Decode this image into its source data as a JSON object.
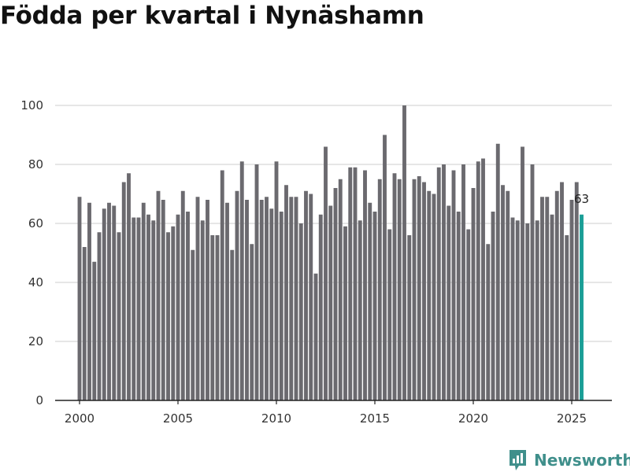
{
  "chart_data": {
    "type": "bar",
    "title": "Födda per kvartal i Nynäshamn",
    "xlabel": "",
    "ylabel": "",
    "ylim": [
      0,
      100
    ],
    "yticks": [
      0,
      20,
      40,
      60,
      80,
      100
    ],
    "xticks": [
      2000,
      2005,
      2010,
      2015,
      2020,
      2025
    ],
    "x_start": 2000.0,
    "period_years": 0.25,
    "values": [
      69,
      52,
      67,
      47,
      57,
      65,
      67,
      66,
      57,
      74,
      77,
      62,
      62,
      67,
      63,
      61,
      71,
      68,
      57,
      59,
      63,
      71,
      64,
      51,
      69,
      61,
      68,
      56,
      56,
      78,
      67,
      51,
      71,
      81,
      68,
      53,
      80,
      68,
      69,
      65,
      81,
      64,
      73,
      69,
      69,
      60,
      71,
      70,
      43,
      63,
      86,
      66,
      72,
      75,
      59,
      79,
      79,
      61,
      78,
      67,
      64,
      75,
      90,
      58,
      77,
      75,
      100,
      56,
      75,
      76,
      74,
      71,
      70,
      79,
      80,
      66,
      78,
      64,
      80,
      58,
      72,
      81,
      82,
      53,
      64,
      87,
      73,
      71,
      62,
      61,
      86,
      60,
      80,
      61,
      69,
      69,
      63,
      71,
      74,
      56,
      68,
      74,
      63
    ],
    "bar_color": "#6b6a6f",
    "highlight_color": "#1a9e96",
    "highlight_last": true,
    "last_value_label": "63",
    "grid": true
  },
  "brand": {
    "name": "Newsworthy",
    "icon": "newsworthy-logo-icon",
    "color": "#3f8f8b"
  }
}
